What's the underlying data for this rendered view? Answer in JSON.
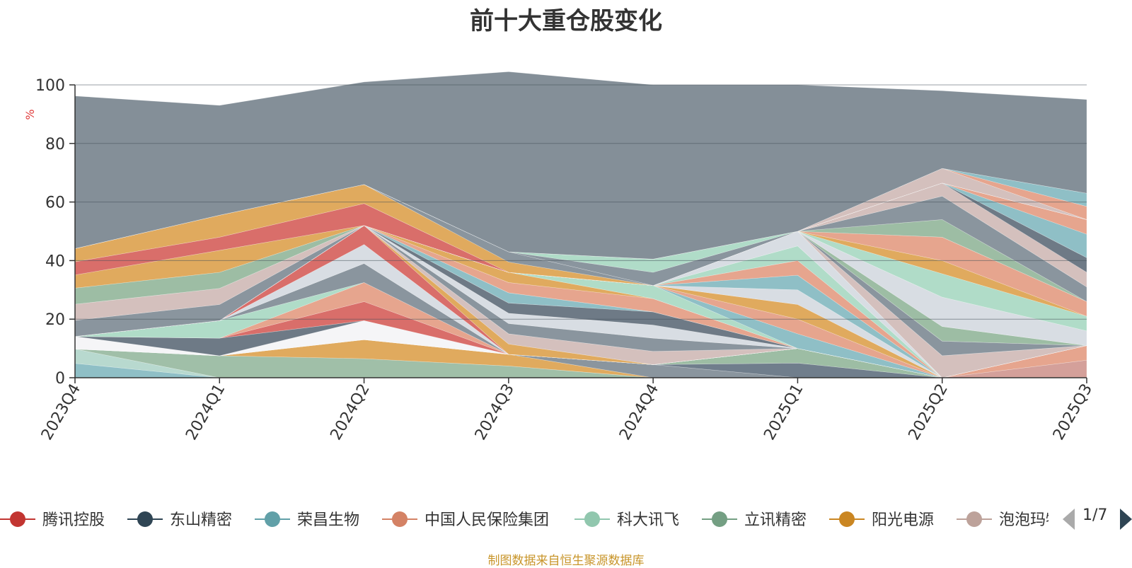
{
  "title": "前十大重仓股变化",
  "footer": "制图数据来自恒生聚源数据库",
  "legend_page": "1/7",
  "chart_data": {
    "type": "area",
    "stacked": true,
    "title": "前十大重仓股变化",
    "ylabel": "%",
    "ylim": [
      0,
      100
    ],
    "yticks": [
      0,
      20,
      40,
      60,
      80,
      100
    ],
    "categories": [
      "2023Q4",
      "2024Q1",
      "2024Q2",
      "2024Q3",
      "2024Q4",
      "2025Q1",
      "2025Q2",
      "2025Q3"
    ],
    "grid": true,
    "legend_position": "bottom",
    "legend_visible": [
      "腾讯控股",
      "东山精密",
      "荣昌生物",
      "中国人民保险集团",
      "科大讯飞",
      "立讯精密",
      "阳光电源",
      "泡泡玛特"
    ],
    "series": [
      {
        "name": "",
        "color": "#8fbfc6",
        "values": [
          4.9,
          0,
          0,
          0,
          0,
          0,
          0,
          0
        ]
      },
      {
        "name": "",
        "color": "#b8d9cf",
        "values": [
          4.9,
          0,
          0,
          0,
          0,
          0,
          0,
          0
        ]
      },
      {
        "name": "",
        "color": "#a0bfa8",
        "values": [
          0,
          7.5,
          6.5,
          4.0,
          0,
          0,
          0,
          0
        ]
      },
      {
        "name": "",
        "color": "#e0aa5e",
        "values": [
          0,
          0,
          6.5,
          4.0,
          0,
          0,
          0,
          0
        ]
      },
      {
        "name": "",
        "color": "#8a959e",
        "values": [
          0,
          0,
          0,
          0,
          4.5,
          0,
          0,
          0
        ]
      },
      {
        "name": "",
        "color": "#707e8c",
        "values": [
          0,
          0,
          0,
          0,
          0,
          5.0,
          0,
          0
        ]
      },
      {
        "name": "",
        "color": "#9dbda4",
        "values": [
          0,
          0,
          0,
          0,
          0,
          5.0,
          0,
          0
        ]
      },
      {
        "name": "",
        "color": "#d4a09a",
        "values": [
          0,
          0,
          0,
          0,
          0,
          0,
          0,
          6.0
        ]
      },
      {
        "name": "",
        "color": "#e6a58e",
        "values": [
          0,
          0,
          0,
          0,
          0,
          0,
          0,
          5.0
        ]
      },
      {
        "name": "",
        "color": "#f5f5f7",
        "values": [
          4.3,
          0,
          6.5,
          0,
          0,
          0,
          0,
          0
        ]
      },
      {
        "name": "",
        "color": "#6e7a86",
        "values": [
          0,
          6.0,
          0,
          0,
          0,
          0,
          0,
          0
        ]
      },
      {
        "name": "",
        "color": "#d96e6a",
        "values": [
          0,
          0,
          6.5,
          0,
          0,
          0,
          0,
          0
        ]
      },
      {
        "name": "",
        "color": "#e6a58e",
        "values": [
          0,
          0,
          6.5,
          0,
          0,
          0,
          0,
          0
        ]
      },
      {
        "name": "",
        "color": "#b0dcc8",
        "values": [
          0,
          6.0,
          0,
          0,
          0,
          0,
          0,
          0
        ]
      },
      {
        "name": "",
        "color": "#8a959e",
        "values": [
          0,
          0,
          6.5,
          0,
          0,
          0,
          0,
          0
        ]
      },
      {
        "name": "",
        "color": "#d8dde3",
        "values": [
          0,
          0,
          6.5,
          0,
          0,
          0,
          0,
          0
        ]
      },
      {
        "name": "",
        "color": "#d96e6a",
        "values": [
          0,
          0,
          6.5,
          0,
          0,
          0,
          0,
          0
        ]
      },
      {
        "name": "",
        "color": "#e0aa5e",
        "values": [
          0,
          0,
          0,
          3.5,
          0,
          0,
          0,
          0
        ]
      },
      {
        "name": "",
        "color": "#d4c0bd",
        "values": [
          0,
          0,
          0,
          3.5,
          4.5,
          0,
          0,
          0
        ]
      },
      {
        "name": "",
        "color": "#8a959e",
        "values": [
          0,
          0,
          0,
          3.5,
          4.5,
          0,
          0,
          0
        ]
      },
      {
        "name": "",
        "color": "#d8dde3",
        "values": [
          0,
          0,
          0,
          3.5,
          4.5,
          0,
          0,
          0
        ]
      },
      {
        "name": "",
        "color": "#6e7a86",
        "values": [
          0,
          0,
          0,
          3.5,
          4.5,
          0,
          0,
          0
        ]
      },
      {
        "name": "",
        "color": "#8fbfc6",
        "values": [
          0,
          0,
          0,
          3.5,
          0,
          0,
          0,
          0
        ]
      },
      {
        "name": "",
        "color": "#e6a58e",
        "values": [
          0,
          0,
          0,
          3.5,
          4.5,
          0,
          0,
          0
        ]
      },
      {
        "name": "",
        "color": "#e0aa5e",
        "values": [
          0,
          0,
          0,
          3.5,
          0,
          0,
          0,
          0
        ]
      },
      {
        "name": "",
        "color": "#b0dcc8",
        "values": [
          0,
          0,
          0,
          0,
          4.5,
          0,
          0,
          0
        ]
      },
      {
        "name": "",
        "color": "#8fbfc6",
        "values": [
          0,
          0,
          0,
          0,
          0,
          5.0,
          0,
          0
        ]
      },
      {
        "name": "",
        "color": "#e6a58e",
        "values": [
          0,
          0,
          0,
          0,
          0,
          5.0,
          0,
          0
        ]
      },
      {
        "name": "",
        "color": "#e0aa5e",
        "values": [
          0,
          0,
          0,
          0,
          0,
          5.0,
          0,
          0
        ]
      },
      {
        "name": "",
        "color": "#d8dde3",
        "values": [
          0,
          0,
          0,
          0,
          0,
          5.0,
          0,
          0
        ]
      },
      {
        "name": "",
        "color": "#8fbfc6",
        "values": [
          0,
          0,
          0,
          0,
          0,
          5.0,
          0,
          0
        ]
      },
      {
        "name": "",
        "color": "#e6a58e",
        "values": [
          0,
          0,
          0,
          0,
          0,
          5.0,
          0,
          0
        ]
      },
      {
        "name": "",
        "color": "#b0dcc8",
        "values": [
          0,
          0,
          0,
          0,
          0,
          5.0,
          0,
          0
        ]
      },
      {
        "name": "",
        "color": "#d8dde3",
        "values": [
          0,
          0,
          0,
          0,
          0,
          5.0,
          0,
          0
        ]
      },
      {
        "name": "",
        "color": "#8fbfc6",
        "values": [
          0,
          0,
          0,
          0,
          0,
          0,
          0,
          0
        ]
      },
      {
        "name": "",
        "color": "#d4c0bd",
        "values": [
          0,
          0,
          0,
          0,
          0,
          0,
          7.5,
          0
        ]
      },
      {
        "name": "",
        "color": "#8a959e",
        "values": [
          0,
          0,
          0,
          0,
          0,
          0,
          5.0,
          0
        ]
      },
      {
        "name": "",
        "color": "#9dbda4",
        "values": [
          0,
          0,
          0,
          0,
          0,
          0,
          5.0,
          0
        ]
      },
      {
        "name": "",
        "color": "#d8dde3",
        "values": [
          0,
          0,
          0,
          0,
          0,
          0,
          10.0,
          5.0
        ]
      },
      {
        "name": "",
        "color": "#b0dcc8",
        "values": [
          0,
          0,
          0,
          0,
          0,
          0,
          8.0,
          5.0
        ]
      },
      {
        "name": "",
        "color": "#e0aa5e",
        "values": [
          0,
          0,
          0,
          0,
          0,
          0,
          4.5,
          0
        ]
      },
      {
        "name": "",
        "color": "#e6a58e",
        "values": [
          0,
          0,
          0,
          0,
          0,
          0,
          8.0,
          5.0
        ]
      },
      {
        "name": "",
        "color": "#9dbda4",
        "values": [
          0,
          0,
          0,
          0,
          0,
          0,
          6.0,
          0
        ]
      },
      {
        "name": "",
        "color": "#8a959e",
        "values": [
          0,
          0,
          0,
          0,
          0,
          0,
          8.0,
          5.0
        ]
      },
      {
        "name": "",
        "color": "#d4c0bd",
        "values": [
          0,
          0,
          0,
          0,
          0,
          0,
          4.5,
          5.0
        ]
      },
      {
        "name": "",
        "color": "#6e7a86",
        "values": [
          0,
          0,
          0,
          0,
          0,
          0,
          0,
          5.0
        ]
      },
      {
        "name": "",
        "color": "#8fbfc6",
        "values": [
          0,
          0,
          0,
          0,
          0,
          0,
          0,
          8.0
        ]
      },
      {
        "name": "",
        "color": "#e6a58e",
        "values": [
          0,
          0,
          0,
          0,
          0,
          0,
          0,
          5.0
        ]
      },
      {
        "name": "",
        "color": "#8a959e",
        "values": [
          5.5,
          5.5,
          0,
          0,
          0,
          0,
          0,
          0
        ]
      },
      {
        "name": "",
        "color": "#d4c0bd",
        "values": [
          5.5,
          5.5,
          0,
          0,
          0,
          0,
          0,
          0
        ]
      },
      {
        "name": "",
        "color": "#9dbda4",
        "values": [
          5.5,
          5.5,
          0,
          0,
          0,
          0,
          0,
          0
        ]
      },
      {
        "name": "",
        "color": "#e0aa5e",
        "values": [
          4.5,
          7.5,
          0,
          0,
          0,
          0,
          0,
          0
        ]
      },
      {
        "name": "",
        "color": "#d96e6a",
        "values": [
          4.5,
          4.5,
          7.5,
          0,
          0,
          0,
          0,
          0
        ]
      },
      {
        "name": "",
        "color": "#e0aa5e",
        "values": [
          4.5,
          7.5,
          6.5,
          3.5,
          0,
          0,
          0,
          0
        ]
      },
      {
        "name": "",
        "color": "#8a959e",
        "values": [
          0,
          0,
          0,
          3.5,
          0,
          0,
          0,
          0
        ]
      },
      {
        "name": "",
        "color": "#8a959e",
        "values": [
          0,
          0,
          0,
          0,
          4.5,
          0,
          0,
          0
        ]
      },
      {
        "name": "",
        "color": "#b0dcc8",
        "values": [
          0,
          0,
          0,
          0,
          4.5,
          0,
          0,
          0
        ]
      },
      {
        "name": "",
        "color": "#d4c0bd",
        "values": [
          0,
          0,
          0,
          0,
          0,
          0,
          5.0,
          0
        ]
      },
      {
        "name": "",
        "color": "#e6a58e",
        "values": [
          0,
          0,
          0,
          0,
          0,
          0,
          0,
          4.5
        ]
      },
      {
        "name": "",
        "color": "#8fbfc6",
        "values": [
          0,
          0,
          0,
          0,
          0,
          0,
          0,
          4.5
        ]
      },
      {
        "name": "",
        "color": "#6e7a86",
        "values": [
          0,
          0,
          0,
          0,
          0,
          0,
          0,
          0
        ]
      },
      {
        "name": "",
        "color": "#848f98",
        "values": [
          52.1,
          37.5,
          35.0,
          61.5,
          59.5,
          50.0,
          26.5,
          32.0
        ]
      }
    ]
  },
  "legend": {
    "items": [
      {
        "label": "腾讯控股",
        "color": "#c23531"
      },
      {
        "label": "东山精密",
        "color": "#2f4554"
      },
      {
        "label": "荣昌生物",
        "color": "#61a0a8"
      },
      {
        "label": "中国人民保险集团",
        "color": "#d48265"
      },
      {
        "label": "科大讯飞",
        "color": "#91c7ae"
      },
      {
        "label": "立讯精密",
        "color": "#749f83"
      },
      {
        "label": "阳光电源",
        "color": "#ca8622"
      },
      {
        "label": "泡泡玛特",
        "color": "#bda29a"
      }
    ]
  }
}
